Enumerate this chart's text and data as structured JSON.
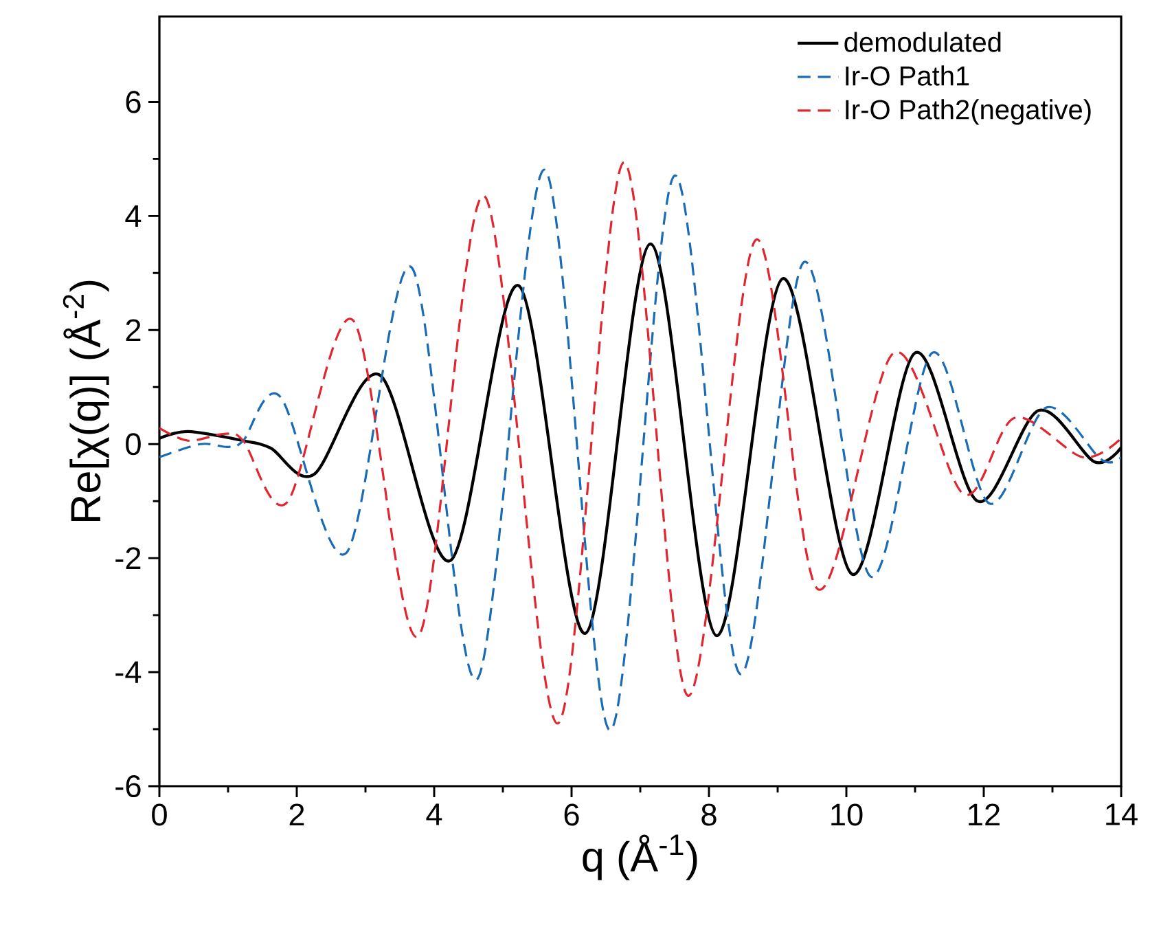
{
  "chart_data": {
    "type": "line",
    "xlabel": "q (Å$^{-1}$)",
    "ylabel": "Re[χ(q)] (Å$^{-2}$)",
    "xlim": [
      0,
      14
    ],
    "ylim": [
      -6,
      7.5
    ],
    "xticks": [
      0,
      2,
      4,
      6,
      8,
      10,
      12,
      14
    ],
    "yticks": [
      -6,
      -4,
      -2,
      0,
      2,
      4,
      6
    ],
    "grid": false,
    "legend": "top right",
    "series": [
      {
        "name": "demodulated",
        "color": "#000000",
        "line_style": "solid",
        "x": [
          0,
          0.42,
          1.22,
          1.62,
          2.25,
          3.21,
          4.24,
          5.23,
          6.2,
          7.15,
          8.11,
          9.07,
          10.08,
          11.0,
          11.91,
          12.8,
          13.61,
          14
        ],
        "values": [
          0.1,
          0.22,
          0.06,
          -0.07,
          -0.53,
          1.21,
          -2.04,
          2.78,
          -3.32,
          3.51,
          -3.36,
          2.9,
          -2.28,
          1.6,
          -1.0,
          0.59,
          -0.31,
          -0.06
        ]
      },
      {
        "name": "Ir-O Path1",
        "color": "#1a6bb5",
        "line_style": "dashed",
        "x": [
          0,
          0.6,
          1.0,
          1.22,
          1.76,
          2.72,
          3.67,
          4.62,
          5.61,
          6.56,
          7.5,
          8.45,
          9.38,
          10.35,
          11.25,
          12.08,
          12.91,
          13.71,
          14
        ],
        "values": [
          -0.23,
          0.0,
          -0.05,
          0.06,
          0.83,
          -1.91,
          3.1,
          -4.13,
          4.81,
          -5.02,
          4.71,
          -4.03,
          3.19,
          -2.32,
          1.6,
          -1.04,
          0.64,
          -0.27,
          -0.23
        ]
      },
      {
        "name": "Ir-O Path2(negative)",
        "color": "#e0262f",
        "line_style": "dashed",
        "x": [
          0,
          0.42,
          0.95,
          1.22,
          1.86,
          2.82,
          3.77,
          4.73,
          5.8,
          6.76,
          7.69,
          8.68,
          9.58,
          10.69,
          11.71,
          12.45,
          13.44,
          14
        ],
        "values": [
          0.28,
          0.06,
          0.18,
          0.06,
          -1.02,
          2.17,
          -3.37,
          4.35,
          -4.9,
          4.94,
          -4.41,
          3.58,
          -2.54,
          1.6,
          -0.88,
          0.46,
          -0.23,
          0.1
        ]
      }
    ]
  }
}
